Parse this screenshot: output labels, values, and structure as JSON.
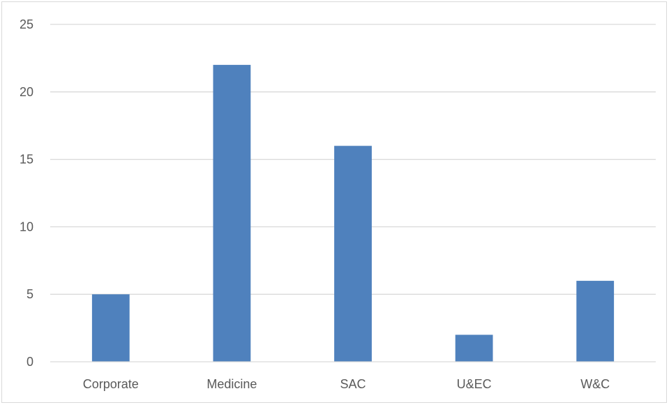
{
  "chart_data": {
    "type": "bar",
    "title": "",
    "xlabel": "",
    "ylabel": "",
    "categories": [
      "Corporate",
      "Medicine",
      "SAC",
      "U&EC",
      "W&C"
    ],
    "values": [
      5,
      22,
      16,
      2,
      6
    ],
    "ylim": [
      0,
      25
    ],
    "yticks": [
      0,
      5,
      10,
      15,
      20,
      25
    ],
    "grid": true,
    "legend": "none",
    "colors": {
      "bar": "#4f81bd",
      "grid": "#d9d9d9",
      "axis": "#d9d9d9",
      "text": "#595959"
    }
  }
}
